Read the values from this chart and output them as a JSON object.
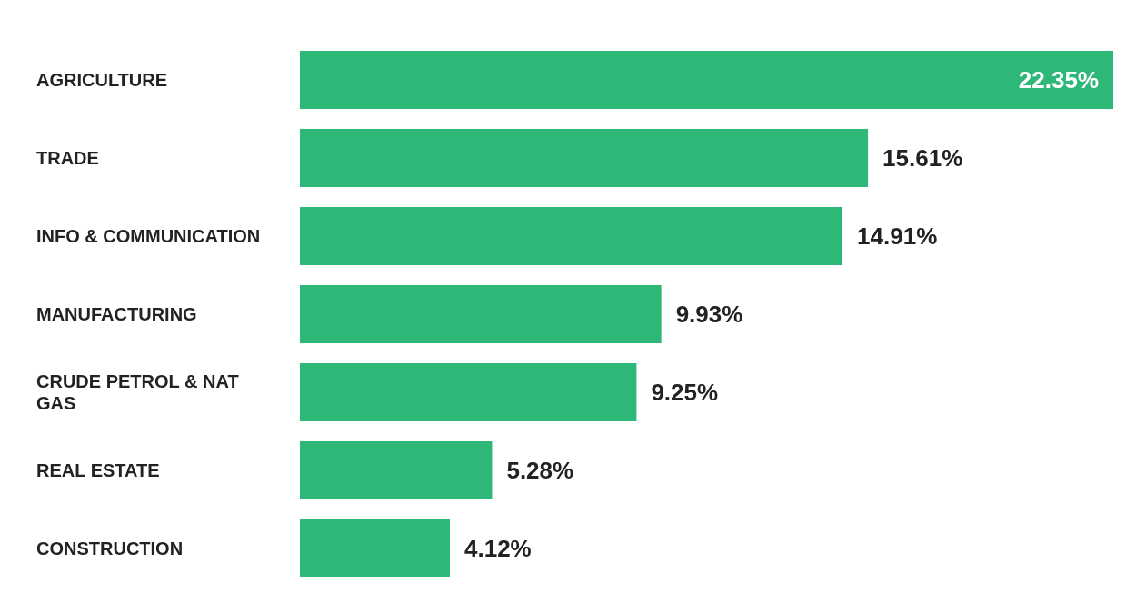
{
  "chart_data": {
    "type": "bar",
    "orientation": "horizontal",
    "categories": [
      "AGRICULTURE",
      "TRADE",
      "INFO & COMMUNICATION",
      "MANUFACTURING",
      "CRUDE PETROL & NAT GAS",
      "REAL ESTATE",
      "CONSTRUCTION"
    ],
    "values": [
      22.35,
      15.61,
      14.91,
      9.93,
      9.25,
      5.28,
      4.12
    ],
    "value_labels": [
      "22.35%",
      "15.61%",
      "14.91%",
      "9.93%",
      "9.25%",
      "5.28%",
      "4.12%"
    ],
    "color": "#2eb877"
  }
}
